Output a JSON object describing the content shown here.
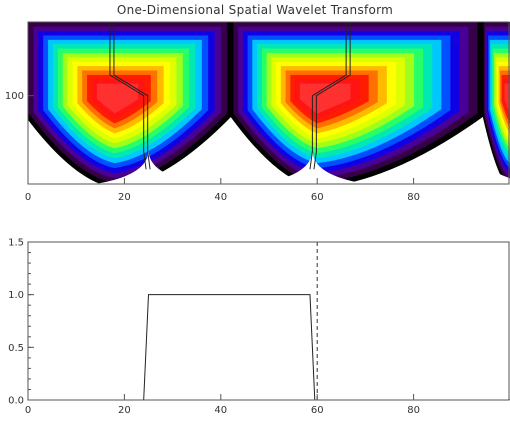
{
  "title": "One-Dimensional Spatial Wavelet Transform",
  "chart_data": [
    {
      "type": "heatmap",
      "title": "One-Dimensional Spatial Wavelet Transform",
      "xlim": [
        0,
        100
      ],
      "ylim": [
        40,
        150
      ],
      "x_ticks": [
        0,
        20,
        40,
        60,
        80
      ],
      "y_ticks": [
        100
      ],
      "colormap": [
        "#000000",
        "#5a007a",
        "#0000ff",
        "#00c8ff",
        "#00ff80",
        "#c8ff00",
        "#ffff00",
        "#ff8c00",
        "#ff0000",
        "#ff3030"
      ],
      "lobes": [
        {
          "x_min": 0,
          "x_max": 41.5,
          "peak_x": 18,
          "peak_y": 100
        },
        {
          "x_min": 42.5,
          "x_max": 93.5,
          "peak_x": 60,
          "peak_y": 100
        },
        {
          "x_min": 94.5,
          "x_max": 100,
          "peak_x": 100,
          "peak_y": 100
        }
      ],
      "cone_vertices": [
        25,
        42,
        59,
        94
      ],
      "ridge_lines": [
        {
          "name": "",
          "points": [
            [
              17,
              150
            ],
            [
              17,
              114
            ],
            [
              24,
              100
            ],
            [
              24,
              62
            ],
            [
              24.5,
              50
            ]
          ]
        },
        {
          "name": "",
          "points": [
            [
              66,
              150
            ],
            [
              66,
              114
            ],
            [
              59,
              100
            ],
            [
              59,
              62
            ],
            [
              58.5,
              50
            ]
          ]
        }
      ],
      "grid": false
    },
    {
      "type": "line",
      "xlim": [
        0,
        100
      ],
      "ylim": [
        0,
        1.5
      ],
      "x_ticks": [
        0,
        20,
        40,
        60,
        80
      ],
      "y_ticks": [
        0.0,
        0.5,
        1.0,
        1.5
      ],
      "y_tick_labels": [
        "0.0",
        "0.5",
        "1.0",
        "1.5"
      ],
      "series": [
        {
          "name": "",
          "x": [
            0,
            24,
            25,
            58.5,
            59.5,
            100
          ],
          "y": [
            0,
            0,
            1.0,
            1.0,
            0,
            0
          ]
        }
      ],
      "vertical_marker": {
        "x": 60,
        "style": "dashed"
      },
      "grid": false
    }
  ]
}
